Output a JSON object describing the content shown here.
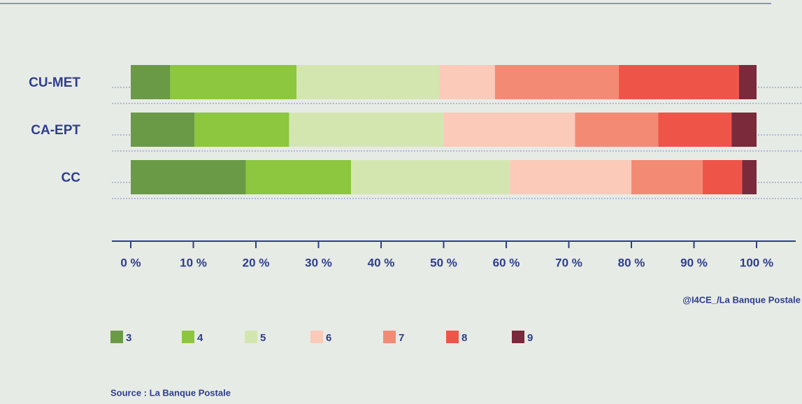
{
  "chart_data": {
    "type": "stacked_barh",
    "categories": [
      "CU-MET",
      "CA-EPT",
      "CC"
    ],
    "series": [
      {
        "name": "3",
        "color": "#6a9a45",
        "values": [
          6.3,
          10.2,
          18.4
        ]
      },
      {
        "name": "4",
        "color": "#8dc63f",
        "values": [
          20.2,
          15.1,
          16.8
        ]
      },
      {
        "name": "5",
        "color": "#d4e6b0",
        "values": [
          22.8,
          24.7,
          25.4
        ]
      },
      {
        "name": "6",
        "color": "#fbcab8",
        "values": [
          8.9,
          21.0,
          19.4
        ]
      },
      {
        "name": "7",
        "color": "#f38b74",
        "values": [
          19.8,
          13.3,
          11.4
        ]
      },
      {
        "name": "8",
        "color": "#ef5449",
        "values": [
          19.2,
          11.7,
          6.3
        ]
      },
      {
        "name": "9",
        "color": "#7a2a3a",
        "values": [
          2.8,
          4.0,
          2.3
        ]
      }
    ],
    "xlim": [
      0,
      100
    ],
    "xticks": [
      {
        "value": 0,
        "label": "0 %"
      },
      {
        "value": 10,
        "label": "10 %"
      },
      {
        "value": 20,
        "label": "20 %"
      },
      {
        "value": 30,
        "label": "30 %"
      },
      {
        "value": 40,
        "label": "40 %"
      },
      {
        "value": 50,
        "label": "50 %"
      },
      {
        "value": 60,
        "label": "60 %"
      },
      {
        "value": 70,
        "label": "70 %"
      },
      {
        "value": 80,
        "label": "80 %"
      },
      {
        "value": 90,
        "label": "90 %"
      },
      {
        "value": 100,
        "label": "100 %"
      }
    ],
    "credit": "@I4CE_/La Banque Postale",
    "source": "Source : La Banque Postale"
  }
}
